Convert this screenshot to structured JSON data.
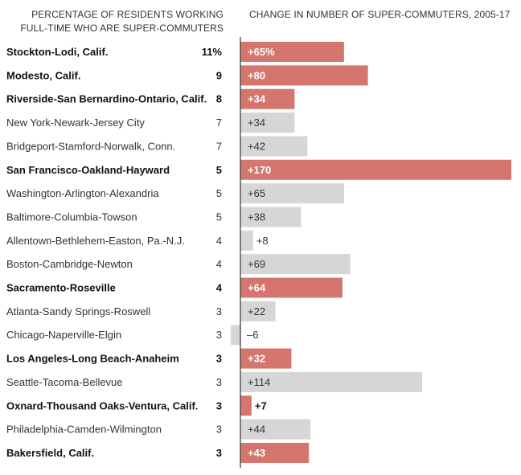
{
  "headers": {
    "left": "PERCENTAGE OF RESIDENTS WORKING FULL-TIME WHO ARE SUPER-COMMUTERS",
    "right": "CHANGE IN NUMBER OF SUPER-COMMUTERS, 2005-17"
  },
  "colors": {
    "highlight": "#d4766d",
    "normal": "#d6d6d6",
    "axis": "#333333"
  },
  "chart_data": {
    "type": "bar",
    "orientation": "horizontal",
    "xlim": [
      -6,
      170
    ],
    "rows": [
      {
        "label": "Stockton-Lodi, Calif.",
        "pct": "11%",
        "change": 65,
        "change_label": "+65%",
        "highlight": true
      },
      {
        "label": "Modesto, Calif.",
        "pct": "9",
        "change": 80,
        "change_label": "+80",
        "highlight": true
      },
      {
        "label": "Riverside-San Bernardino-Ontario, Calif.",
        "pct": "8",
        "change": 34,
        "change_label": "+34",
        "highlight": true
      },
      {
        "label": "New York-Newark-Jersey City",
        "pct": "7",
        "change": 34,
        "change_label": "+34",
        "highlight": false
      },
      {
        "label": "Bridgeport-Stamford-Norwalk, Conn.",
        "pct": "7",
        "change": 42,
        "change_label": "+42",
        "highlight": false
      },
      {
        "label": "San Francisco-Oakland-Hayward",
        "pct": "5",
        "change": 170,
        "change_label": "+170",
        "highlight": true
      },
      {
        "label": "Washington-Arlington-Alexandria",
        "pct": "5",
        "change": 65,
        "change_label": "+65",
        "highlight": false
      },
      {
        "label": "Baltimore-Columbia-Towson",
        "pct": "5",
        "change": 38,
        "change_label": "+38",
        "highlight": false
      },
      {
        "label": "Allentown-Bethlehem-Easton, Pa.-N.J.",
        "pct": "4",
        "change": 8,
        "change_label": "+8",
        "highlight": false
      },
      {
        "label": "Boston-Cambridge-Newton",
        "pct": "4",
        "change": 69,
        "change_label": "+69",
        "highlight": false
      },
      {
        "label": "Sacramento-Roseville",
        "pct": "4",
        "change": 64,
        "change_label": "+64",
        "highlight": true
      },
      {
        "label": "Atlanta-Sandy Springs-Roswell",
        "pct": "3",
        "change": 22,
        "change_label": "+22",
        "highlight": false
      },
      {
        "label": "Chicago-Naperville-Elgin",
        "pct": "3",
        "change": -6,
        "change_label": "–6",
        "highlight": false
      },
      {
        "label": "Los Angeles-Long Beach-Anaheim",
        "pct": "3",
        "change": 32,
        "change_label": "+32",
        "highlight": true
      },
      {
        "label": "Seattle-Tacoma-Bellevue",
        "pct": "3",
        "change": 114,
        "change_label": "+114",
        "highlight": false
      },
      {
        "label": "Oxnard-Thousand Oaks-Ventura, Calif.",
        "pct": "3",
        "change": 7,
        "change_label": "+7",
        "highlight": true
      },
      {
        "label": "Philadelphia-Camden-Wilmington",
        "pct": "3",
        "change": 44,
        "change_label": "+44",
        "highlight": false
      },
      {
        "label": "Bakersfield, Calif.",
        "pct": "3",
        "change": 43,
        "change_label": "+43",
        "highlight": true
      }
    ]
  }
}
